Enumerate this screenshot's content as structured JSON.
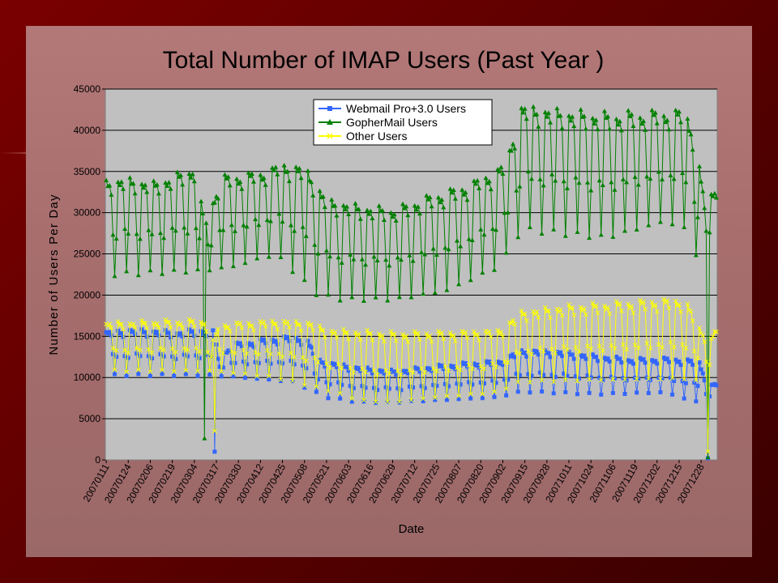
{
  "chart_data": {
    "type": "line",
    "title": "Total Number of IMAP Users (Past Year )",
    "xlabel": "Date",
    "ylabel": "Number of Users Per Day",
    "ylim": [
      0,
      45000
    ],
    "yticks": [
      0,
      5000,
      10000,
      15000,
      20000,
      25000,
      30000,
      35000,
      40000,
      45000
    ],
    "grid": true,
    "legend_position": "top-center",
    "plot_background": "#c0c0c0",
    "xticks": [
      "20070111",
      "20070124",
      "20070206",
      "20070219",
      "20070304",
      "20070317",
      "20070330",
      "20070412",
      "20070425",
      "20070508",
      "20070521",
      "20070603",
      "20070616",
      "20070629",
      "20070712",
      "20070725",
      "20070807",
      "20070820",
      "20070902",
      "20070915",
      "20070928",
      "20071011",
      "20071024",
      "20071106",
      "20071119",
      "20071202",
      "20071215",
      "20071228"
    ],
    "x_start": "20070111",
    "x_end": "20080106",
    "series": [
      {
        "name": "Webmail Pro+3.0 Users",
        "color": "#3366ff",
        "marker": "square",
        "baseline": [
          [
            0,
            15500
          ],
          [
            14,
            15800
          ],
          [
            28,
            15700
          ],
          [
            42,
            15500
          ],
          [
            56,
            15800
          ],
          [
            64,
            15500
          ],
          [
            66,
            12500
          ],
          [
            75,
            14000
          ],
          [
            90,
            14500
          ],
          [
            105,
            14900
          ],
          [
            118,
            14800
          ],
          [
            125,
            12200
          ],
          [
            132,
            11800
          ],
          [
            150,
            11200
          ],
          [
            170,
            10800
          ],
          [
            190,
            11300
          ],
          [
            210,
            11700
          ],
          [
            232,
            12000
          ],
          [
            245,
            13300
          ],
          [
            265,
            13200
          ],
          [
            290,
            12600
          ],
          [
            310,
            12200
          ],
          [
            335,
            12300
          ],
          [
            350,
            11900
          ],
          [
            355,
            9000
          ],
          [
            362,
            9300
          ]
        ],
        "weekend": [
          [
            0,
            10300
          ],
          [
            60,
            10300
          ],
          [
            75,
            10100
          ],
          [
            110,
            9500
          ],
          [
            130,
            7600
          ],
          [
            150,
            7000
          ],
          [
            170,
            7000
          ],
          [
            190,
            7200
          ],
          [
            230,
            7600
          ],
          [
            245,
            8300
          ],
          [
            290,
            8000
          ],
          [
            330,
            8200
          ],
          [
            345,
            7200
          ],
          [
            355,
            6800
          ],
          [
            362,
            7000
          ]
        ],
        "dips": [
          {
            "d": 64,
            "v": 1000
          },
          {
            "d": 355,
            "v": 200
          }
        ]
      },
      {
        "name": "GopherMail Users",
        "color": "#008000",
        "marker": "triangle",
        "baseline": [
          [
            0,
            33800
          ],
          [
            14,
            34000
          ],
          [
            28,
            33500
          ],
          [
            42,
            34500
          ],
          [
            52,
            35400
          ],
          [
            58,
            28800
          ],
          [
            68,
            34200
          ],
          [
            90,
            34700
          ],
          [
            105,
            35800
          ],
          [
            118,
            35300
          ],
          [
            130,
            31500
          ],
          [
            150,
            30700
          ],
          [
            170,
            30300
          ],
          [
            190,
            31800
          ],
          [
            210,
            33000
          ],
          [
            228,
            34700
          ],
          [
            236,
            36000
          ],
          [
            245,
            42800
          ],
          [
            270,
            42200
          ],
          [
            295,
            41800
          ],
          [
            320,
            42000
          ],
          [
            342,
            42200
          ],
          [
            348,
            38500
          ],
          [
            353,
            31000
          ],
          [
            362,
            33800
          ]
        ],
        "weekend": [
          [
            0,
            22500
          ],
          [
            58,
            23000
          ],
          [
            75,
            23500
          ],
          [
            100,
            25000
          ],
          [
            125,
            20000
          ],
          [
            140,
            19500
          ],
          [
            170,
            19500
          ],
          [
            200,
            20500
          ],
          [
            232,
            23500
          ],
          [
            245,
            28000
          ],
          [
            295,
            27000
          ],
          [
            330,
            29000
          ],
          [
            342,
            28000
          ],
          [
            350,
            24000
          ],
          [
            362,
            25000
          ]
        ],
        "dips": [
          {
            "d": 58,
            "v": 2600
          },
          {
            "d": 355,
            "v": 300
          }
        ]
      },
      {
        "name": "Other Users",
        "color": "#ffff00",
        "marker": "x",
        "baseline": [
          [
            0,
            16600
          ],
          [
            30,
            16800
          ],
          [
            58,
            16900
          ],
          [
            64,
            14000
          ],
          [
            66,
            16400
          ],
          [
            100,
            16900
          ],
          [
            120,
            16700
          ],
          [
            130,
            15800
          ],
          [
            170,
            15400
          ],
          [
            200,
            15500
          ],
          [
            232,
            15700
          ],
          [
            245,
            18000
          ],
          [
            270,
            18600
          ],
          [
            300,
            19000
          ],
          [
            330,
            19400
          ],
          [
            342,
            19300
          ],
          [
            350,
            16000
          ],
          [
            356,
            14300
          ],
          [
            362,
            17000
          ]
        ],
        "weekend": [
          [
            0,
            10800
          ],
          [
            64,
            10800
          ],
          [
            100,
            10000
          ],
          [
            130,
            8500
          ],
          [
            150,
            7200
          ],
          [
            170,
            7000
          ],
          [
            190,
            7500
          ],
          [
            230,
            8200
          ],
          [
            245,
            9500
          ],
          [
            290,
            9700
          ],
          [
            340,
            9900
          ],
          [
            350,
            9500
          ],
          [
            362,
            10200
          ]
        ],
        "dips": [
          {
            "d": 64,
            "v": 3500
          },
          {
            "d": 355,
            "v": 1000
          }
        ]
      }
    ]
  }
}
